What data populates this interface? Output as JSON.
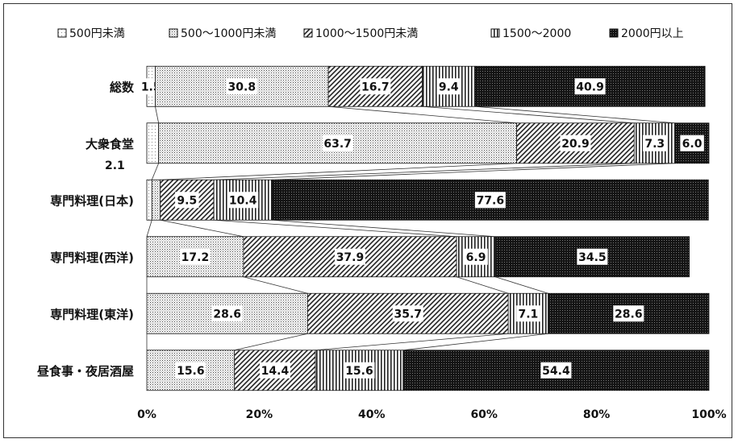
{
  "chart_data": {
    "type": "bar",
    "orientation": "horizontal",
    "stacked": "100%",
    "legend_position": "top",
    "grid": false,
    "categories": [
      "総数",
      "大衆食堂",
      "専門料理(日本)",
      "専門料理(西洋)",
      "専門料理(東洋)",
      "昼食事・夜居酒屋"
    ],
    "series": [
      {
        "name": "500円未満",
        "values": [
          1.5,
          2.1,
          0.9,
          0.0,
          0.0,
          0.0
        ],
        "pattern": "light-dots",
        "color": "#f2f2f2"
      },
      {
        "name": "500〜1000円未満",
        "values": [
          30.8,
          63.7,
          1.5,
          17.2,
          28.6,
          15.6
        ],
        "pattern": "dense-dots",
        "color": "#d9d9d9"
      },
      {
        "name": "1000〜1500円未満",
        "values": [
          16.7,
          20.9,
          9.5,
          37.9,
          35.7,
          14.4
        ],
        "pattern": "diagonal-hatch",
        "color": "#444444"
      },
      {
        "name": "1500〜2000",
        "values": [
          9.4,
          7.3,
          10.4,
          6.9,
          7.1,
          15.6
        ],
        "pattern": "vertical-lines",
        "color": "#555555"
      },
      {
        "name": "2000円以上",
        "values": [
          40.9,
          6.0,
          77.6,
          34.5,
          28.6,
          54.4
        ],
        "pattern": "dark-dots",
        "color": "#1a1a1a"
      }
    ],
    "data_labels": [
      [
        "1.5",
        "30.8",
        "16.7",
        "9.4",
        "40.9"
      ],
      [
        "",
        "63.7",
        "20.9",
        "7.3",
        "6.0"
      ],
      [
        "",
        "",
        "9.5",
        "10.4",
        "77.6"
      ],
      [
        "",
        "17.2",
        "37.9",
        "6.9",
        "34.5"
      ],
      [
        "",
        "28.6",
        "35.7",
        "7.1",
        "28.6"
      ],
      [
        "",
        "15.6",
        "14.4",
        "15.6",
        "54.4"
      ]
    ],
    "outside_labels": [
      {
        "category": "大衆食堂",
        "text": "2.1"
      }
    ],
    "xlim": [
      0,
      100
    ],
    "x_ticks": [
      "0%",
      "20%",
      "40%",
      "60%",
      "80%",
      "100%"
    ],
    "xlabel": "",
    "ylabel": "",
    "title": ""
  }
}
